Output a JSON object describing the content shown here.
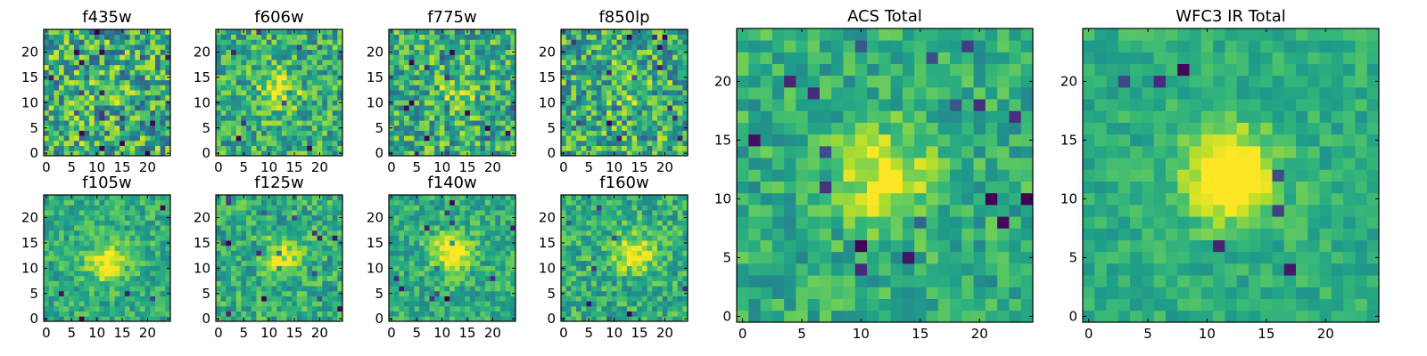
{
  "chart_data": [
    {
      "type": "heatmap",
      "title": "f435w",
      "xlim": [
        0,
        24
      ],
      "ylim": [
        0,
        24
      ],
      "xticks": [
        0,
        5,
        10,
        15,
        20
      ],
      "yticks": [
        0,
        5,
        10,
        15,
        20
      ],
      "grid_size": [
        25,
        25
      ],
      "colormap": "viridis",
      "signal": {
        "center": [
          12,
          12
        ],
        "strength": 0.05,
        "noise": 0.6
      }
    },
    {
      "type": "heatmap",
      "title": "f606w",
      "xlim": [
        0,
        24
      ],
      "ylim": [
        0,
        24
      ],
      "xticks": [
        0,
        5,
        10,
        15,
        20
      ],
      "yticks": [
        0,
        5,
        10,
        15,
        20
      ],
      "grid_size": [
        25,
        25
      ],
      "colormap": "viridis",
      "signal": {
        "center": [
          12,
          12
        ],
        "strength": 0.35,
        "noise": 0.45
      }
    },
    {
      "type": "heatmap",
      "title": "f775w",
      "xlim": [
        0,
        24
      ],
      "ylim": [
        0,
        24
      ],
      "xticks": [
        0,
        5,
        10,
        15,
        20
      ],
      "yticks": [
        0,
        5,
        10,
        15,
        20
      ],
      "grid_size": [
        25,
        25
      ],
      "colormap": "viridis",
      "signal": {
        "center": [
          13,
          12
        ],
        "strength": 0.25,
        "noise": 0.5
      }
    },
    {
      "type": "heatmap",
      "title": "f850lp",
      "xlim": [
        0,
        24
      ],
      "ylim": [
        0,
        24
      ],
      "xticks": [
        0,
        5,
        10,
        15,
        20
      ],
      "yticks": [
        0,
        5,
        10,
        15,
        20
      ],
      "grid_size": [
        25,
        25
      ],
      "colormap": "viridis",
      "signal": {
        "center": [
          12,
          12
        ],
        "strength": 0.1,
        "noise": 0.55
      }
    },
    {
      "type": "heatmap",
      "title": "f105w",
      "xlim": [
        0,
        24
      ],
      "ylim": [
        0,
        24
      ],
      "xticks": [
        0,
        5,
        10,
        15,
        20
      ],
      "yticks": [
        0,
        5,
        10,
        15,
        20
      ],
      "grid_size": [
        25,
        25
      ],
      "colormap": "viridis",
      "signal": {
        "center": [
          12,
          11
        ],
        "strength": 0.4,
        "noise": 0.3
      }
    },
    {
      "type": "heatmap",
      "title": "f125w",
      "xlim": [
        0,
        24
      ],
      "ylim": [
        0,
        24
      ],
      "xticks": [
        0,
        5,
        10,
        15,
        20
      ],
      "yticks": [
        0,
        5,
        10,
        15,
        20
      ],
      "grid_size": [
        25,
        25
      ],
      "colormap": "viridis",
      "signal": {
        "center": [
          13,
          12
        ],
        "strength": 0.3,
        "noise": 0.35
      }
    },
    {
      "type": "heatmap",
      "title": "f140w",
      "xlim": [
        0,
        24
      ],
      "ylim": [
        0,
        24
      ],
      "xticks": [
        0,
        5,
        10,
        15,
        20
      ],
      "yticks": [
        0,
        5,
        10,
        15,
        20
      ],
      "grid_size": [
        25,
        25
      ],
      "colormap": "viridis",
      "signal": {
        "center": [
          12,
          13
        ],
        "strength": 0.45,
        "noise": 0.3
      }
    },
    {
      "type": "heatmap",
      "title": "f160w",
      "xlim": [
        0,
        24
      ],
      "ylim": [
        0,
        24
      ],
      "xticks": [
        0,
        5,
        10,
        15,
        20
      ],
      "yticks": [
        0,
        5,
        10,
        15,
        20
      ],
      "grid_size": [
        25,
        25
      ],
      "colormap": "viridis",
      "signal": {
        "center": [
          14,
          13
        ],
        "strength": 0.4,
        "noise": 0.35
      }
    },
    {
      "type": "heatmap",
      "title": "ACS Total",
      "xlim": [
        0,
        24
      ],
      "ylim": [
        0,
        24
      ],
      "xticks": [
        0,
        5,
        10,
        15,
        20
      ],
      "yticks": [
        0,
        5,
        10,
        15,
        20
      ],
      "grid_size": [
        25,
        25
      ],
      "colormap": "viridis",
      "signal": {
        "center": [
          12,
          12
        ],
        "strength": 0.4,
        "noise": 0.3
      }
    },
    {
      "type": "heatmap",
      "title": "WFC3 IR Total",
      "xlim": [
        0,
        24
      ],
      "ylim": [
        0,
        24
      ],
      "xticks": [
        0,
        5,
        10,
        15,
        20
      ],
      "yticks": [
        0,
        5,
        10,
        15,
        20
      ],
      "grid_size": [
        25,
        25
      ],
      "colormap": "viridis",
      "signal": {
        "center": [
          12,
          12
        ],
        "strength": 0.6,
        "noise": 0.2
      }
    }
  ]
}
